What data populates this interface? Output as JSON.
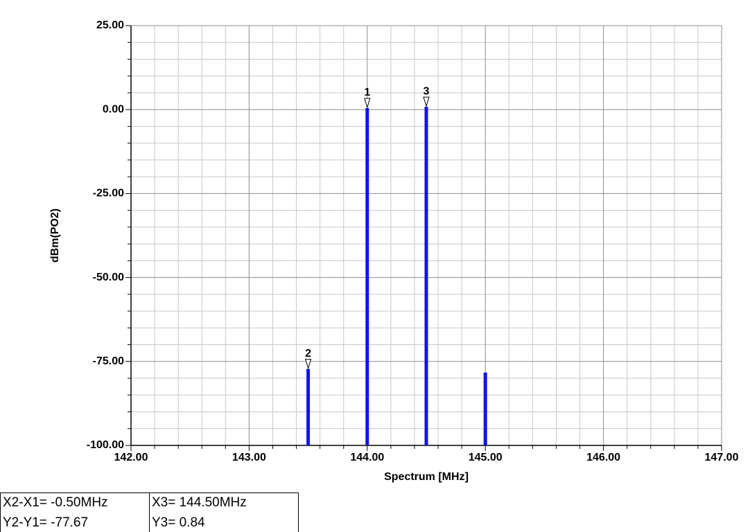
{
  "chart_data": {
    "type": "stem",
    "ylabel": "dBm(PO2)",
    "xlabel": "Spectrum [MHz]",
    "x": [
      143.5,
      144.0,
      144.5,
      145.0
    ],
    "values": [
      -77.22,
      0.45,
      0.84,
      -78.3
    ],
    "marker_labels": [
      "2",
      "1",
      "3",
      null
    ],
    "color": "#1414e6",
    "xlim": [
      142,
      147
    ],
    "ylim": [
      -100,
      25
    ],
    "xticks": [
      {
        "value": 142,
        "label": "142.00"
      },
      {
        "value": 143,
        "label": "143.00"
      },
      {
        "value": 144,
        "label": "144.00"
      },
      {
        "value": 145,
        "label": "145.00"
      },
      {
        "value": 146,
        "label": "146.00"
      },
      {
        "value": 147,
        "label": "147.00"
      }
    ],
    "yticks": [
      {
        "value": 25,
        "label": "25.00"
      },
      {
        "value": 0,
        "label": "0.00"
      },
      {
        "value": -25,
        "label": "-25.00"
      },
      {
        "value": -50,
        "label": "-50.00"
      },
      {
        "value": -75,
        "label": "-75.00"
      },
      {
        "value": -100,
        "label": "-100.00"
      }
    ],
    "xminor": [
      142.2,
      142.4,
      142.6,
      142.8,
      143.2,
      143.4,
      143.6,
      143.8,
      144.2,
      144.4,
      144.6,
      144.8,
      145.2,
      145.4,
      145.6,
      145.8,
      146.2,
      146.4,
      146.6,
      146.8
    ],
    "yminor": [
      20,
      15,
      10,
      5,
      -5,
      -10,
      -15,
      -20,
      -30,
      -35,
      -40,
      -45,
      -55,
      -60,
      -65,
      -70,
      -80,
      -85,
      -90,
      -95
    ],
    "grid": true,
    "readout": [
      [
        "X2-X1= -0.50MHz",
        "X3= 144.50MHz"
      ],
      [
        "Y2-Y1= -77.67",
        "Y3= 0.84"
      ]
    ]
  }
}
